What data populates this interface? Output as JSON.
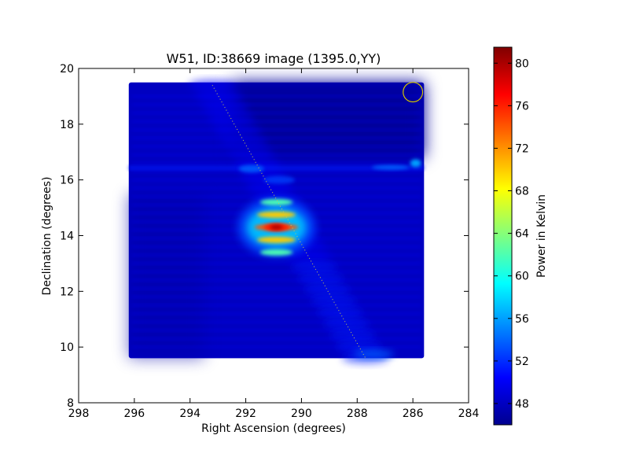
{
  "chart_data": {
    "type": "heatmap",
    "title": "W51, ID:38669 image (1395.0,YY)",
    "xlabel": "Right Ascension (degrees)",
    "ylabel": "Declination (degrees)",
    "xlim": [
      298,
      284
    ],
    "ylim": [
      8,
      20
    ],
    "x_ticks": [
      298,
      296,
      294,
      292,
      290,
      288,
      286,
      284
    ],
    "y_ticks": [
      8,
      10,
      12,
      14,
      16,
      18,
      20
    ],
    "x_tick_labels": [
      "298",
      "296",
      "294",
      "292",
      "290",
      "288",
      "286",
      "284"
    ],
    "y_tick_labels": [
      "8",
      "10",
      "12",
      "14",
      "16",
      "18",
      "20"
    ],
    "image_extent": {
      "ra": [
        296.2,
        285.6
      ],
      "dec": [
        9.6,
        19.5
      ]
    },
    "background_level": 48,
    "colormap": "jet",
    "colorbar": {
      "label": "Power in Kelvin",
      "range": [
        46,
        81.5
      ],
      "ticks": [
        48,
        52,
        56,
        60,
        64,
        68,
        72,
        76,
        80
      ],
      "tick_labels": [
        "48",
        "52",
        "56",
        "60",
        "64",
        "68",
        "72",
        "76",
        "80"
      ]
    },
    "sources": [
      {
        "name": "W51",
        "ra": 290.9,
        "dec": 14.3,
        "peak": 80
      },
      {
        "ra": 285.9,
        "dec": 16.6,
        "peak": 56
      }
    ],
    "galactic_plane_line": {
      "from": [
        293.2,
        19.4
      ],
      "to": [
        287.7,
        9.6
      ],
      "color": "#c8c850"
    },
    "beam_circle": {
      "ra": 286.0,
      "dec": 19.15,
      "radius_deg": 0.35,
      "color": "#d4c400"
    },
    "grid": false,
    "legend": "none"
  }
}
